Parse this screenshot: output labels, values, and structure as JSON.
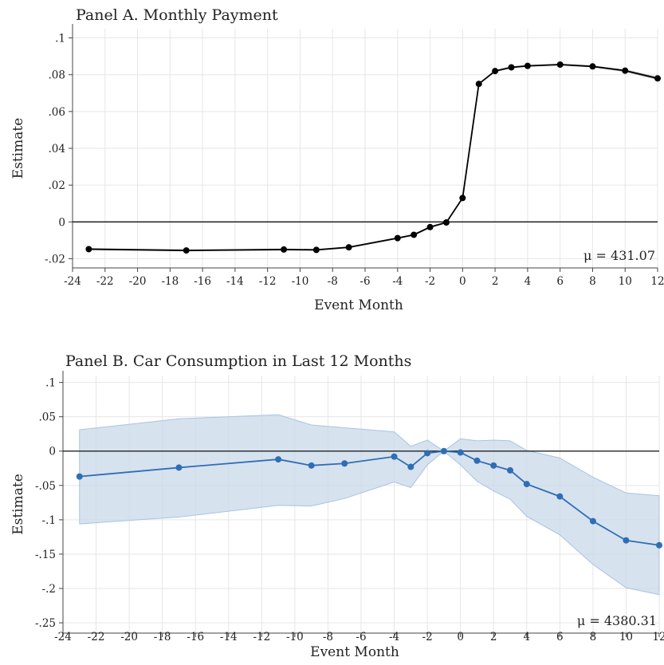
{
  "chart_data": [
    {
      "type": "line",
      "title": "Panel A. Monthly Payment",
      "xlabel": "Event Month",
      "ylabel": "Estimate",
      "xlim": [
        -24,
        12
      ],
      "ylim": [
        -0.025,
        0.105
      ],
      "xticks": [
        -24,
        -22,
        -20,
        -18,
        -16,
        -14,
        -12,
        -10,
        -8,
        -6,
        -4,
        -2,
        0,
        2,
        4,
        6,
        8,
        10,
        12
      ],
      "xtick_labels": [
        "-24",
        "-22",
        "-20",
        "-18",
        "-16",
        "-14",
        "-12",
        "-10",
        "-8",
        "-6",
        "-4",
        "-2",
        "0",
        "2",
        "4",
        "6",
        "8",
        "10",
        "12"
      ],
      "yticks": [
        -0.02,
        0,
        0.02,
        0.04,
        0.06,
        0.08,
        0.1
      ],
      "ytick_labels": [
        "-.02",
        "0",
        ".02",
        ".04",
        ".06",
        ".08",
        ".1"
      ],
      "grid": true,
      "reference_line_y": 0,
      "color": "#000000",
      "band_color": "#aaaaaa",
      "annotation": "μ = 431.07",
      "series": [
        {
          "x": [
            -23,
            -17,
            -11,
            -9,
            -7,
            -4,
            -3,
            -2,
            -1,
            0,
            1,
            2,
            3,
            4,
            6,
            8,
            10,
            12
          ],
          "values": [
            -0.0148,
            -0.0155,
            -0.015,
            -0.0152,
            -0.0138,
            -0.0088,
            -0.007,
            -0.0028,
            -0.0003,
            0.013,
            0.075,
            0.082,
            0.084,
            0.0848,
            0.0855,
            0.0845,
            0.0822,
            0.078
          ],
          "ci_low": [
            -0.0153,
            -0.016,
            -0.0155,
            -0.0157,
            -0.0143,
            -0.0093,
            -0.0075,
            -0.0033,
            -0.0008,
            0.0125,
            0.0745,
            0.0815,
            0.0835,
            0.0843,
            0.085,
            0.084,
            0.0815,
            0.0772
          ],
          "ci_high": [
            -0.0143,
            -0.015,
            -0.0145,
            -0.0147,
            -0.0133,
            -0.0083,
            -0.0065,
            -0.0023,
            0.0002,
            0.0135,
            0.0755,
            0.0825,
            0.0845,
            0.0853,
            0.086,
            0.085,
            0.0829,
            0.0788
          ]
        }
      ]
    },
    {
      "type": "line",
      "title": "Panel B. Car Consumption in Last 12 Months",
      "xlabel": "Event Month",
      "ylabel": "Estimate",
      "xlim": [
        -24,
        12
      ],
      "ylim": [
        -0.265,
        0.11
      ],
      "xticks": [
        -24,
        -22,
        -20,
        -18,
        -16,
        -14,
        -12,
        -10,
        -8,
        -6,
        -4,
        -2,
        0,
        2,
        4,
        6,
        8,
        10,
        12
      ],
      "xtick_labels": [
        "-24",
        "-22",
        "-20",
        "-18",
        "-16",
        "-14",
        "-12",
        "-10",
        "-8",
        "-6",
        "-4",
        "-2",
        "0",
        "2",
        "4",
        "6",
        "8",
        "10",
        "12"
      ],
      "yticks": [
        -0.25,
        -0.2,
        -0.15,
        -0.1,
        -0.05,
        0,
        0.05,
        0.1
      ],
      "ytick_labels": [
        "-.25",
        "-.2",
        "-.15",
        "-.1",
        "-.05",
        "0",
        ".05",
        ".1"
      ],
      "grid": true,
      "reference_line_y": 0,
      "color": "#2f6eb5",
      "band_color": "#c9d8ea",
      "annotation": "μ = 4380.31",
      "series": [
        {
          "x": [
            -23,
            -17,
            -11,
            -9,
            -7,
            -4,
            -3,
            -2,
            -1,
            0,
            1,
            2,
            3,
            4,
            6,
            8,
            10,
            12
          ],
          "values": [
            -0.037,
            -0.024,
            -0.012,
            -0.021,
            -0.018,
            -0.008,
            -0.023,
            -0.003,
            0.0,
            -0.002,
            -0.014,
            -0.021,
            -0.028,
            -0.048,
            -0.066,
            -0.102,
            -0.13,
            -0.137
          ],
          "ci_low": [
            -0.106,
            -0.096,
            -0.079,
            -0.08,
            -0.069,
            -0.045,
            -0.053,
            -0.02,
            0.0,
            -0.02,
            -0.044,
            -0.058,
            -0.07,
            -0.095,
            -0.122,
            -0.165,
            -0.199,
            -0.209
          ],
          "ci_high": [
            0.031,
            0.047,
            0.053,
            0.038,
            0.034,
            0.028,
            0.007,
            0.016,
            0.0,
            0.018,
            0.015,
            0.016,
            0.015,
            0.001,
            -0.01,
            -0.038,
            -0.061,
            -0.065
          ]
        }
      ]
    }
  ]
}
